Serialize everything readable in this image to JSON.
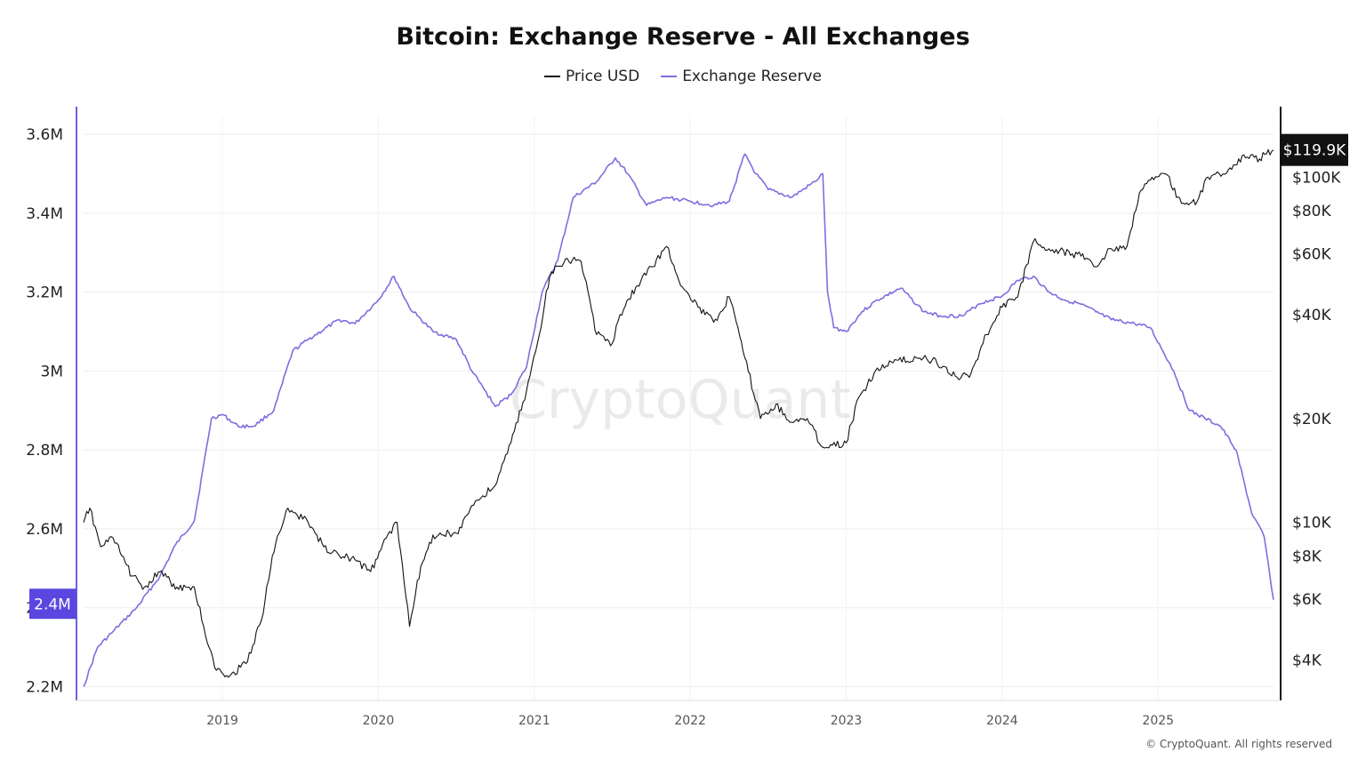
{
  "title": "Bitcoin: Exchange Reserve - All Exchanges",
  "legend": [
    {
      "name": "Price USD",
      "color": "#111111"
    },
    {
      "name": "Exchange Reserve",
      "color": "#7b6fe0"
    }
  ],
  "watermark": "CryptoQuant",
  "footer": "© CryptoQuant. All rights reserved",
  "chart_data": {
    "type": "line",
    "title": "Bitcoin: Exchange Reserve - All Exchanges",
    "xlabel": "",
    "x_ticks": [
      "2019",
      "2020",
      "2021",
      "2022",
      "2023",
      "2024",
      "2025"
    ],
    "x_range": [
      2018.11,
      2025.74
    ],
    "left_axis": {
      "ticks": [
        "2.2M",
        "2.4M",
        "2.6M",
        "2.8M",
        "3M",
        "3.2M",
        "3.4M",
        "3.6M"
      ],
      "tick_values": [
        2200000,
        2400000,
        2600000,
        2800000,
        3000000,
        3200000,
        3400000,
        3600000
      ],
      "range": [
        2165000,
        3670000
      ],
      "current_label": "2.4M",
      "current_value": 2410000,
      "color": "#5b47e0"
    },
    "right_axis": {
      "scale": "log",
      "ticks": [
        "$4K",
        "$6K",
        "$8K",
        "$10K",
        "$20K",
        "$40K",
        "$60K",
        "$80K",
        "$100K"
      ],
      "tick_values": [
        4000,
        6000,
        8000,
        10000,
        20000,
        40000,
        60000,
        80000,
        100000
      ],
      "range": [
        3050,
        160000
      ],
      "current_label": "$119.9K",
      "current_value": 119900
    },
    "series": [
      {
        "name": "Exchange Reserve",
        "axis": "left",
        "color": "#7b6fe0",
        "x": [
          2018.11,
          2018.2,
          2018.3,
          2018.45,
          2018.6,
          2018.7,
          2018.82,
          2018.93,
          2019.0,
          2019.1,
          2019.2,
          2019.33,
          2019.45,
          2019.55,
          2019.75,
          2019.85,
          2020.0,
          2020.1,
          2020.2,
          2020.25,
          2020.35,
          2020.5,
          2020.6,
          2020.75,
          2020.85,
          2020.95,
          2021.05,
          2021.15,
          2021.25,
          2021.4,
          2021.52,
          2021.6,
          2021.72,
          2021.85,
          2022.0,
          2022.15,
          2022.25,
          2022.35,
          2022.42,
          2022.5,
          2022.65,
          2022.8,
          2022.85,
          2022.88,
          2022.92,
          2023.0,
          2023.1,
          2023.2,
          2023.35,
          2023.5,
          2023.6,
          2023.75,
          2023.85,
          2024.0,
          2024.1,
          2024.2,
          2024.3,
          2024.4,
          2024.5,
          2024.6,
          2024.7,
          2024.85,
          2024.95,
          2025.1,
          2025.2,
          2025.3,
          2025.4,
          2025.5,
          2025.6,
          2025.68,
          2025.74
        ],
        "values": [
          2200000,
          2300000,
          2340000,
          2400000,
          2480000,
          2560000,
          2620000,
          2880000,
          2890000,
          2860000,
          2860000,
          2900000,
          3050000,
          3080000,
          3130000,
          3120000,
          3180000,
          3240000,
          3160000,
          3140000,
          3100000,
          3080000,
          3000000,
          2910000,
          2940000,
          3010000,
          3200000,
          3280000,
          3440000,
          3480000,
          3540000,
          3500000,
          3420000,
          3440000,
          3430000,
          3420000,
          3430000,
          3550000,
          3500000,
          3460000,
          3440000,
          3480000,
          3500000,
          3200000,
          3110000,
          3100000,
          3150000,
          3180000,
          3210000,
          3150000,
          3140000,
          3140000,
          3170000,
          3190000,
          3230000,
          3240000,
          3200000,
          3180000,
          3170000,
          3150000,
          3130000,
          3120000,
          3110000,
          3000000,
          2900000,
          2880000,
          2860000,
          2800000,
          2640000,
          2580000,
          2420000
        ]
      },
      {
        "name": "Price USD",
        "axis": "right",
        "color": "#111111",
        "x": [
          2018.11,
          2018.15,
          2018.22,
          2018.3,
          2018.42,
          2018.5,
          2018.6,
          2018.72,
          2018.82,
          2018.88,
          2018.95,
          2019.05,
          2019.15,
          2019.25,
          2019.32,
          2019.42,
          2019.48,
          2019.55,
          2019.65,
          2019.75,
          2019.85,
          2019.95,
          2020.05,
          2020.12,
          2020.2,
          2020.25,
          2020.35,
          2020.5,
          2020.6,
          2020.75,
          2020.85,
          2020.95,
          2021.02,
          2021.1,
          2021.2,
          2021.3,
          2021.4,
          2021.5,
          2021.55,
          2021.65,
          2021.75,
          2021.85,
          2021.95,
          2022.05,
          2022.15,
          2022.25,
          2022.35,
          2022.45,
          2022.55,
          2022.65,
          2022.75,
          2022.85,
          2022.9,
          2023.0,
          2023.08,
          2023.2,
          2023.3,
          2023.45,
          2023.55,
          2023.7,
          2023.8,
          2023.9,
          2024.0,
          2024.1,
          2024.2,
          2024.3,
          2024.45,
          2024.55,
          2024.6,
          2024.7,
          2024.8,
          2024.88,
          2024.95,
          2025.05,
          2025.15,
          2025.25,
          2025.32,
          2025.45,
          2025.55,
          2025.65,
          2025.74
        ],
        "values": [
          10000,
          11000,
          8500,
          9000,
          7000,
          6500,
          7200,
          6400,
          6500,
          5000,
          3800,
          3600,
          3900,
          5200,
          8000,
          11000,
          10500,
          10000,
          8500,
          8000,
          7800,
          7200,
          9000,
          10000,
          5000,
          6800,
          9200,
          9300,
          11200,
          12800,
          17000,
          24000,
          33000,
          52000,
          58000,
          57000,
          35000,
          33000,
          40000,
          48000,
          55000,
          63000,
          48000,
          42000,
          38000,
          45000,
          30000,
          20000,
          22000,
          19500,
          20000,
          16500,
          16800,
          17000,
          23000,
          28000,
          29000,
          30000,
          29500,
          26500,
          27000,
          35000,
          42000,
          45000,
          65000,
          62000,
          60000,
          58000,
          55000,
          62000,
          63000,
          90000,
          98000,
          102000,
          84000,
          85000,
          100000,
          105000,
          116000,
          113000,
          119900
        ]
      }
    ]
  }
}
